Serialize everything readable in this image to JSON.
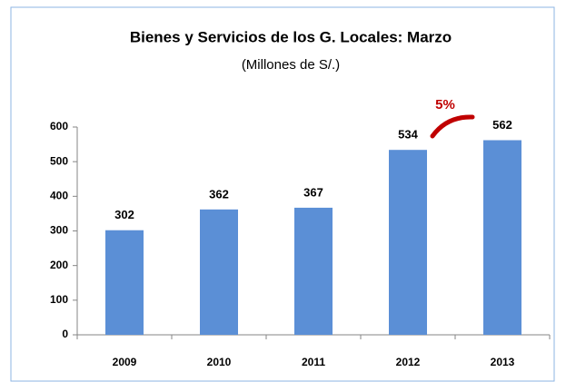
{
  "chart_data": {
    "type": "bar",
    "title": "Bienes y Servicios de los G. Locales: Marzo",
    "subtitle": "(Millones de S/.)",
    "categories": [
      "2009",
      "2010",
      "2011",
      "2012",
      "2013"
    ],
    "values": [
      302,
      362,
      367,
      534,
      562
    ],
    "color": "#5b8fd6",
    "ylim": [
      0,
      600
    ],
    "yticks": [
      0,
      100,
      200,
      300,
      400,
      500,
      600
    ],
    "grid": false,
    "annotation": "5%",
    "annotation_color": "#c00000"
  }
}
